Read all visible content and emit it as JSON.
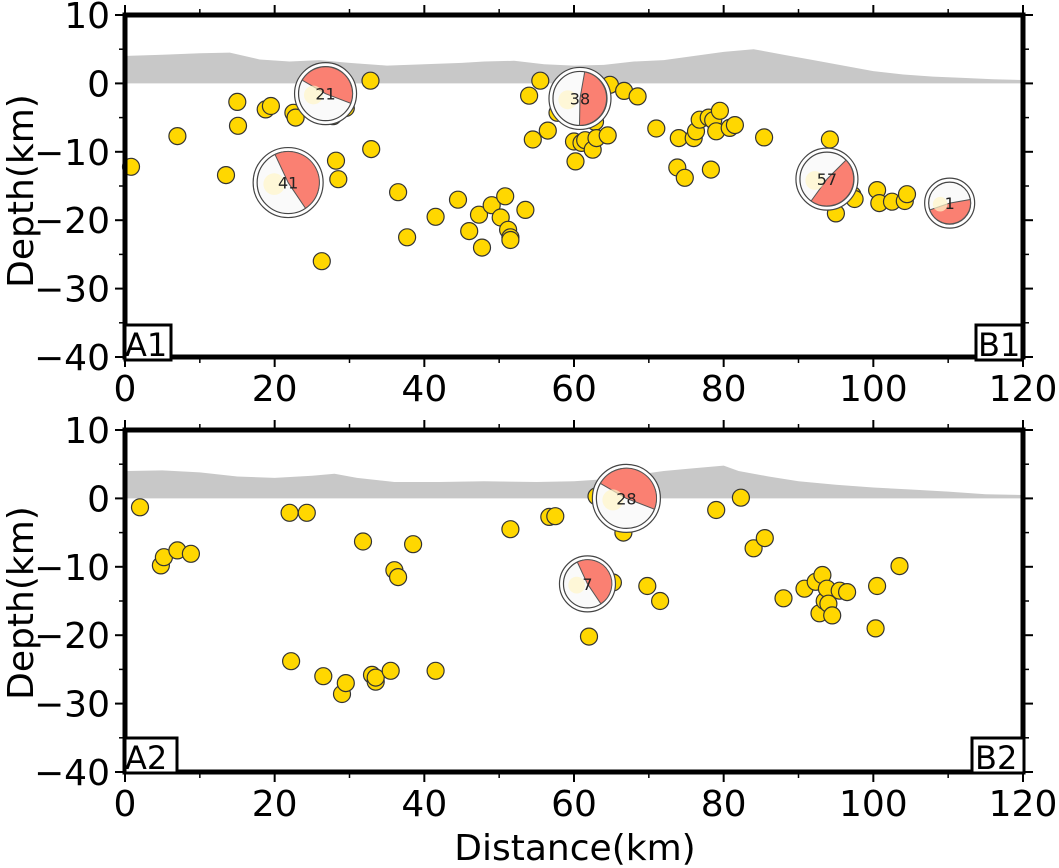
{
  "chart_data": [
    {
      "type": "scatter",
      "panel": "top",
      "ylabel": "Depth(km)",
      "xlabel": "",
      "xlim": [
        0,
        120
      ],
      "ylim": [
        -40,
        10
      ],
      "x_ticks": [
        "0",
        "20",
        "40",
        "60",
        "80",
        "100",
        "120"
      ],
      "y_ticks": [
        "10",
        "0",
        "−10",
        "−20",
        "−30",
        "−40"
      ],
      "corner_labels": {
        "left": "A1",
        "right": "B1"
      },
      "topography": [
        [
          0,
          4
        ],
        [
          5,
          4.2
        ],
        [
          10,
          4.4
        ],
        [
          14,
          4.5
        ],
        [
          18,
          3.5
        ],
        [
          22,
          3.2
        ],
        [
          26,
          3.4
        ],
        [
          30,
          3
        ],
        [
          35,
          2.6
        ],
        [
          40,
          2.8
        ],
        [
          45,
          3
        ],
        [
          48,
          3.2
        ],
        [
          52,
          3.3
        ],
        [
          56,
          2.8
        ],
        [
          60,
          2.6
        ],
        [
          64,
          2.7
        ],
        [
          68,
          3.2
        ],
        [
          72,
          3.4
        ],
        [
          76,
          4
        ],
        [
          80,
          4.6
        ],
        [
          84,
          5
        ],
        [
          88,
          4.2
        ],
        [
          92,
          3.4
        ],
        [
          96,
          2.6
        ],
        [
          100,
          1.8
        ],
        [
          104,
          1.3
        ],
        [
          108,
          1
        ],
        [
          112,
          0.8
        ],
        [
          116,
          0.6
        ],
        [
          120,
          0.5
        ]
      ],
      "events": [
        [
          0.8,
          -12.2
        ],
        [
          7,
          -7.7
        ],
        [
          13.5,
          -13.4
        ],
        [
          15,
          -2.7
        ],
        [
          15.1,
          -6.2
        ],
        [
          18.8,
          -3.8
        ],
        [
          19.5,
          -3.3
        ],
        [
          22.5,
          -4.3
        ],
        [
          22.8,
          -5
        ],
        [
          26,
          1.5
        ],
        [
          26.8,
          -1
        ],
        [
          27.5,
          -2
        ],
        [
          27.8,
          -4.8
        ],
        [
          28,
          -4
        ],
        [
          28.2,
          -11.3
        ],
        [
          28.5,
          -14
        ],
        [
          29,
          0.2
        ],
        [
          29.5,
          -3.6
        ],
        [
          29.7,
          -1.8
        ],
        [
          26.3,
          -26
        ],
        [
          32.8,
          0.4
        ],
        [
          32.9,
          -9.6
        ],
        [
          36.5,
          -15.9
        ],
        [
          37.7,
          -22.5
        ],
        [
          41.5,
          -19.5
        ],
        [
          44.5,
          -17
        ],
        [
          46,
          -21.6
        ],
        [
          47.3,
          -19.2
        ],
        [
          47.7,
          -24
        ],
        [
          49,
          -17.8
        ],
        [
          50.2,
          -19.6
        ],
        [
          50.8,
          -16.5
        ],
        [
          51.2,
          -21.4
        ],
        [
          51.5,
          -22.5
        ],
        [
          51.5,
          -22.9
        ],
        [
          53.5,
          -18.5
        ],
        [
          54,
          -1.8
        ],
        [
          54.5,
          -8.2
        ],
        [
          55.5,
          0.4
        ],
        [
          56.5,
          -6.9
        ],
        [
          57.8,
          -4.3
        ],
        [
          58.5,
          -3
        ],
        [
          59,
          -2
        ],
        [
          59.5,
          -0.5
        ],
        [
          60,
          -8.5
        ],
        [
          60.2,
          -11.4
        ],
        [
          61,
          -8.7
        ],
        [
          61.5,
          -8.3
        ],
        [
          62.3,
          -4.5
        ],
        [
          62.5,
          -9.7
        ],
        [
          62.8,
          -5.6
        ],
        [
          63,
          -8
        ],
        [
          63,
          -3.7
        ],
        [
          64.5,
          -7.6
        ],
        [
          64.8,
          -0.2
        ],
        [
          66.7,
          -1.1
        ],
        [
          68.5,
          -1.9
        ],
        [
          71,
          -6.6
        ],
        [
          73.8,
          -12.3
        ],
        [
          74,
          -8
        ],
        [
          74.8,
          -13.8
        ],
        [
          76,
          -8
        ],
        [
          76.3,
          -7
        ],
        [
          76.8,
          -5.3
        ],
        [
          78,
          -5
        ],
        [
          78.3,
          -12.6
        ],
        [
          78.6,
          -5.4
        ],
        [
          79,
          -7
        ],
        [
          79.5,
          -4
        ],
        [
          80.8,
          -6.5
        ],
        [
          81.5,
          -6.1
        ],
        [
          85.4,
          -7.9
        ],
        [
          94.2,
          -8.2
        ],
        [
          93.6,
          -16.5
        ],
        [
          94.5,
          -17.5
        ],
        [
          95,
          -19
        ],
        [
          97.2,
          -16.3
        ],
        [
          97.5,
          -16.9
        ],
        [
          100.5,
          -15.6
        ],
        [
          100.8,
          -17.5
        ],
        [
          102.5,
          -17.3
        ],
        [
          104.2,
          -17.2
        ],
        [
          104.5,
          -16.2
        ]
      ],
      "mechanisms": [
        {
          "label": "21",
          "x": 26.8,
          "y": -1.5,
          "r": 27
        },
        {
          "label": "41",
          "x": 21.8,
          "y": -14.5,
          "r": 31
        },
        {
          "label": "38",
          "x": 60.8,
          "y": -2.2,
          "r": 27
        },
        {
          "label": "57",
          "x": 93.8,
          "y": -14,
          "r": 27
        },
        {
          "label": "1",
          "x": 110.2,
          "y": -17.5,
          "r": 21
        }
      ]
    },
    {
      "type": "scatter",
      "panel": "bottom",
      "ylabel": "Depth(km)",
      "xlabel": "Distance(km)",
      "xlim": [
        0,
        120
      ],
      "ylim": [
        -40,
        10
      ],
      "x_ticks": [
        "0",
        "20",
        "40",
        "60",
        "80",
        "100",
        "120"
      ],
      "y_ticks": [
        "10",
        "0",
        "−10",
        "−20",
        "−30",
        "−40"
      ],
      "corner_labels": {
        "left": "A2",
        "right": "B2"
      },
      "topography": [
        [
          0,
          4
        ],
        [
          5,
          4.1
        ],
        [
          10,
          3.8
        ],
        [
          15,
          3.2
        ],
        [
          20,
          3
        ],
        [
          25,
          3.3
        ],
        [
          28,
          3.6
        ],
        [
          31,
          3
        ],
        [
          36,
          2.4
        ],
        [
          42,
          2.4
        ],
        [
          48,
          2.5
        ],
        [
          55,
          2.4
        ],
        [
          60,
          2.5
        ],
        [
          64,
          2.8
        ],
        [
          68,
          3.4
        ],
        [
          72,
          4
        ],
        [
          76,
          4.4
        ],
        [
          80,
          4.8
        ],
        [
          82,
          4
        ],
        [
          86,
          3.2
        ],
        [
          90,
          2.5
        ],
        [
          95,
          2
        ],
        [
          100,
          1.6
        ],
        [
          105,
          1.3
        ],
        [
          110,
          1
        ],
        [
          115,
          0.6
        ],
        [
          120,
          0.5
        ]
      ],
      "events": [
        [
          2,
          -1.3
        ],
        [
          4.8,
          -9.8
        ],
        [
          5.2,
          -8.6
        ],
        [
          7,
          -7.6
        ],
        [
          8.8,
          -8.1
        ],
        [
          22,
          -2.1
        ],
        [
          24.3,
          -2.1
        ],
        [
          22.2,
          -23.8
        ],
        [
          26.5,
          -26
        ],
        [
          29,
          -28.6
        ],
        [
          29.5,
          -27
        ],
        [
          31.8,
          -6.3
        ],
        [
          33,
          -25.8
        ],
        [
          33.5,
          -26.8
        ],
        [
          33.5,
          -26.2
        ],
        [
          35.5,
          -25.2
        ],
        [
          36,
          -10.5
        ],
        [
          36.5,
          -11.5
        ],
        [
          38.5,
          -6.7
        ],
        [
          41.5,
          -25.2
        ],
        [
          51.5,
          -4.5
        ],
        [
          56.7,
          -2.7
        ],
        [
          57.5,
          -2.6
        ],
        [
          63,
          0.3
        ],
        [
          65.2,
          -12.3
        ],
        [
          62,
          -20.2
        ],
        [
          66.6,
          -5
        ],
        [
          69.8,
          -12.8
        ],
        [
          71.5,
          -15
        ],
        [
          79,
          -1.7
        ],
        [
          82.3,
          0.1
        ],
        [
          84,
          -7.3
        ],
        [
          85.5,
          -5.8
        ],
        [
          88,
          -14.6
        ],
        [
          90.8,
          -13.2
        ],
        [
          92.3,
          -12.2
        ],
        [
          93.2,
          -11.2
        ],
        [
          92.8,
          -16.8
        ],
        [
          93.5,
          -15
        ],
        [
          93.8,
          -13.2
        ],
        [
          94,
          -15.4
        ],
        [
          94.5,
          -17.1
        ],
        [
          95.5,
          -13.5
        ],
        [
          96.5,
          -13.7
        ],
        [
          100.3,
          -19
        ],
        [
          100.5,
          -12.8
        ],
        [
          103.5,
          -9.9
        ]
      ],
      "mechanisms": [
        {
          "label": "28",
          "x": 67,
          "y": 0,
          "r": 30
        },
        {
          "label": "7",
          "x": 61.8,
          "y": -12.5,
          "r": 24
        }
      ]
    }
  ]
}
